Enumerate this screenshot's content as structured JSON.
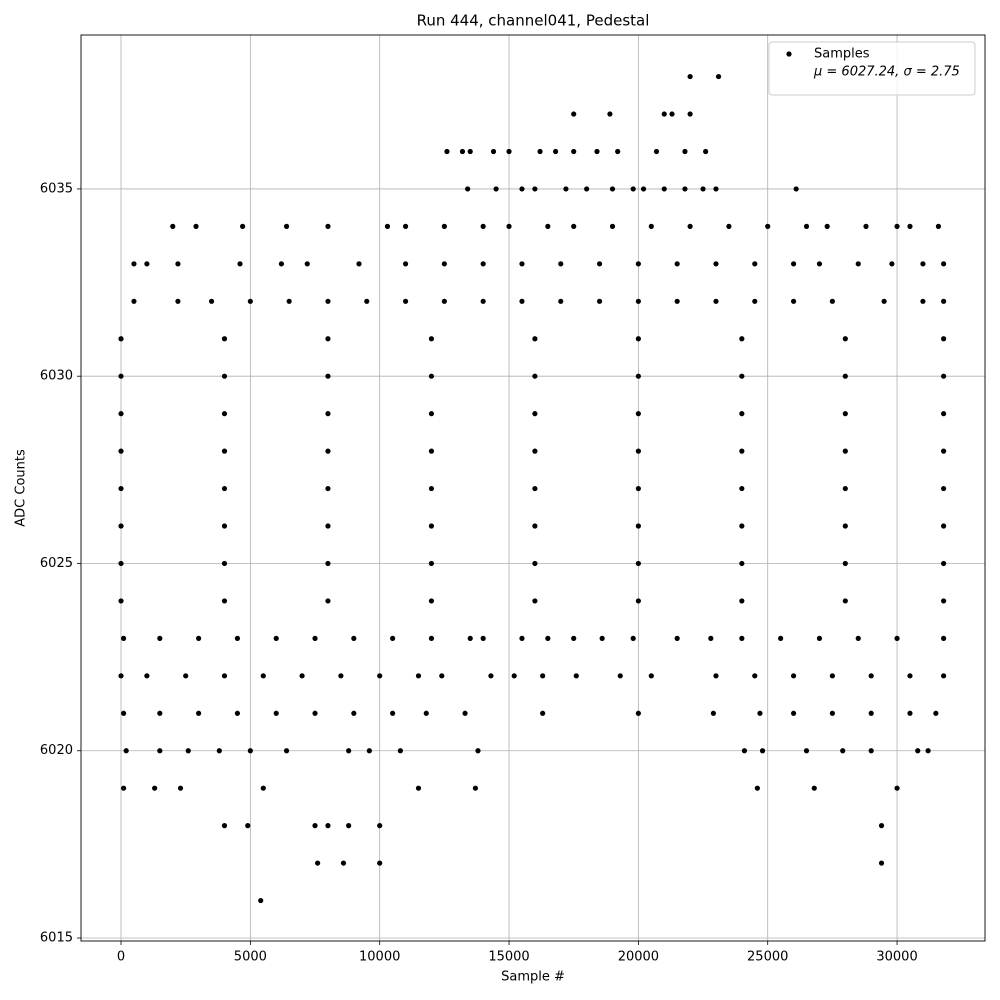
{
  "chart_data": {
    "type": "scatter",
    "title": "Run 444, channel041, Pedestal",
    "x_label": "Sample #",
    "y_label": "ADC Counts",
    "legend_note": "μ = 6027.24, σ = 2.75",
    "legend_position": "upper right",
    "grid": true,
    "xlim": [
      -1547,
      33400
    ],
    "ylim": [
      6014.92,
      6039.11
    ],
    "xticks": [
      0,
      5000,
      10000,
      15000,
      20000,
      25000,
      30000
    ],
    "yticks": [
      6015,
      6020,
      6025,
      6030,
      6035
    ],
    "x": [
      5400,
      7600,
      8600,
      10000,
      29400,
      4000,
      4900,
      7500,
      8000,
      8800,
      10000,
      29400,
      100,
      1300,
      2300,
      5500,
      11500,
      13700,
      24600,
      26800,
      30000,
      200,
      1500,
      2600,
      3800,
      5000,
      6400,
      8800,
      9600,
      10800,
      13800,
      24100,
      24800,
      26500,
      27900,
      29000,
      30800,
      31200,
      100,
      1500,
      3000,
      4500,
      6000,
      7500,
      9000,
      10500,
      11800,
      13300,
      16300,
      20000,
      22900,
      24700,
      26000,
      27500,
      29000,
      30500,
      31500,
      0,
      1000,
      2500,
      4000,
      5500,
      7000,
      8500,
      10000,
      11500,
      12400,
      14300,
      15200,
      16300,
      17600,
      19300,
      20500,
      23000,
      24500,
      26000,
      27500,
      29000,
      30500,
      31800,
      100,
      1500,
      3000,
      4500,
      6000,
      7500,
      9000,
      10500,
      12000,
      13500,
      14000,
      15500,
      16500,
      17500,
      18600,
      19800,
      21500,
      22800,
      24000,
      25500,
      27000,
      28500,
      30000,
      31800,
      0,
      4000,
      8000,
      12000,
      16000,
      20000,
      24000,
      28000,
      31800,
      0,
      4000,
      8000,
      12000,
      16000,
      20000,
      24000,
      28000,
      31800,
      0,
      4000,
      8000,
      12000,
      16000,
      20000,
      24000,
      28000,
      31800,
      0,
      4000,
      8000,
      12000,
      16000,
      20000,
      24000,
      28000,
      31800,
      0,
      4000,
      8000,
      12000,
      16000,
      20000,
      24000,
      28000,
      31800,
      0,
      4000,
      8000,
      12000,
      16000,
      20000,
      24000,
      28000,
      31800,
      0,
      4000,
      8000,
      12000,
      16000,
      20000,
      24000,
      28000,
      31800,
      0,
      4000,
      8000,
      12000,
      16000,
      20000,
      24000,
      28000,
      31800,
      500,
      2200,
      3500,
      5000,
      6500,
      8000,
      9500,
      11000,
      12500,
      14000,
      15500,
      17000,
      18500,
      20000,
      21500,
      23000,
      24500,
      26000,
      27500,
      29500,
      31000,
      31800,
      500,
      1000,
      2200,
      4600,
      6200,
      7200,
      9200,
      11000,
      12500,
      14000,
      15500,
      17000,
      18500,
      20000,
      21500,
      23000,
      24500,
      26000,
      27000,
      28500,
      29800,
      31000,
      31800,
      2000,
      2900,
      4700,
      6400,
      8000,
      10300,
      11000,
      12500,
      14000,
      15000,
      16500,
      17500,
      19000,
      20500,
      22000,
      23500,
      25000,
      26500,
      27300,
      28800,
      30000,
      30500,
      31600,
      13400,
      14500,
      15500,
      16000,
      17200,
      18000,
      19000,
      19800,
      20200,
      21000,
      21800,
      22500,
      23000,
      26100,
      12600,
      13200,
      13500,
      14400,
      15000,
      16200,
      16800,
      17500,
      18400,
      19200,
      20700,
      21800,
      22600,
      17500,
      18900,
      21000,
      21300,
      22000,
      22000,
      23100
    ],
    "series": [
      {
        "name": "Samples",
        "color": "#000000",
        "values": [
          6016,
          6017,
          6017,
          6017,
          6017,
          6018,
          6018,
          6018,
          6018,
          6018,
          6018,
          6018,
          6019,
          6019,
          6019,
          6019,
          6019,
          6019,
          6019,
          6019,
          6019,
          6020,
          6020,
          6020,
          6020,
          6020,
          6020,
          6020,
          6020,
          6020,
          6020,
          6020,
          6020,
          6020,
          6020,
          6020,
          6020,
          6020,
          6021,
          6021,
          6021,
          6021,
          6021,
          6021,
          6021,
          6021,
          6021,
          6021,
          6021,
          6021,
          6021,
          6021,
          6021,
          6021,
          6021,
          6021,
          6021,
          6022,
          6022,
          6022,
          6022,
          6022,
          6022,
          6022,
          6022,
          6022,
          6022,
          6022,
          6022,
          6022,
          6022,
          6022,
          6022,
          6022,
          6022,
          6022,
          6022,
          6022,
          6022,
          6022,
          6023,
          6023,
          6023,
          6023,
          6023,
          6023,
          6023,
          6023,
          6023,
          6023,
          6023,
          6023,
          6023,
          6023,
          6023,
          6023,
          6023,
          6023,
          6023,
          6023,
          6023,
          6023,
          6023,
          6023,
          6024,
          6024,
          6024,
          6024,
          6024,
          6024,
          6024,
          6024,
          6024,
          6025,
          6025,
          6025,
          6025,
          6025,
          6025,
          6025,
          6025,
          6025,
          6026,
          6026,
          6026,
          6026,
          6026,
          6026,
          6026,
          6026,
          6026,
          6027,
          6027,
          6027,
          6027,
          6027,
          6027,
          6027,
          6027,
          6027,
          6028,
          6028,
          6028,
          6028,
          6028,
          6028,
          6028,
          6028,
          6028,
          6029,
          6029,
          6029,
          6029,
          6029,
          6029,
          6029,
          6029,
          6029,
          6030,
          6030,
          6030,
          6030,
          6030,
          6030,
          6030,
          6030,
          6030,
          6031,
          6031,
          6031,
          6031,
          6031,
          6031,
          6031,
          6031,
          6031,
          6032,
          6032,
          6032,
          6032,
          6032,
          6032,
          6032,
          6032,
          6032,
          6032,
          6032,
          6032,
          6032,
          6032,
          6032,
          6032,
          6032,
          6032,
          6032,
          6032,
          6032,
          6032,
          6033,
          6033,
          6033,
          6033,
          6033,
          6033,
          6033,
          6033,
          6033,
          6033,
          6033,
          6033,
          6033,
          6033,
          6033,
          6033,
          6033,
          6033,
          6033,
          6033,
          6033,
          6033,
          6033,
          6034,
          6034,
          6034,
          6034,
          6034,
          6034,
          6034,
          6034,
          6034,
          6034,
          6034,
          6034,
          6034,
          6034,
          6034,
          6034,
          6034,
          6034,
          6034,
          6034,
          6034,
          6034,
          6034,
          6035,
          6035,
          6035,
          6035,
          6035,
          6035,
          6035,
          6035,
          6035,
          6035,
          6035,
          6035,
          6035,
          6035,
          6036,
          6036,
          6036,
          6036,
          6036,
          6036,
          6036,
          6036,
          6036,
          6036,
          6036,
          6036,
          6036,
          6037,
          6037,
          6037,
          6037,
          6037,
          6038,
          6038
        ]
      }
    ]
  }
}
